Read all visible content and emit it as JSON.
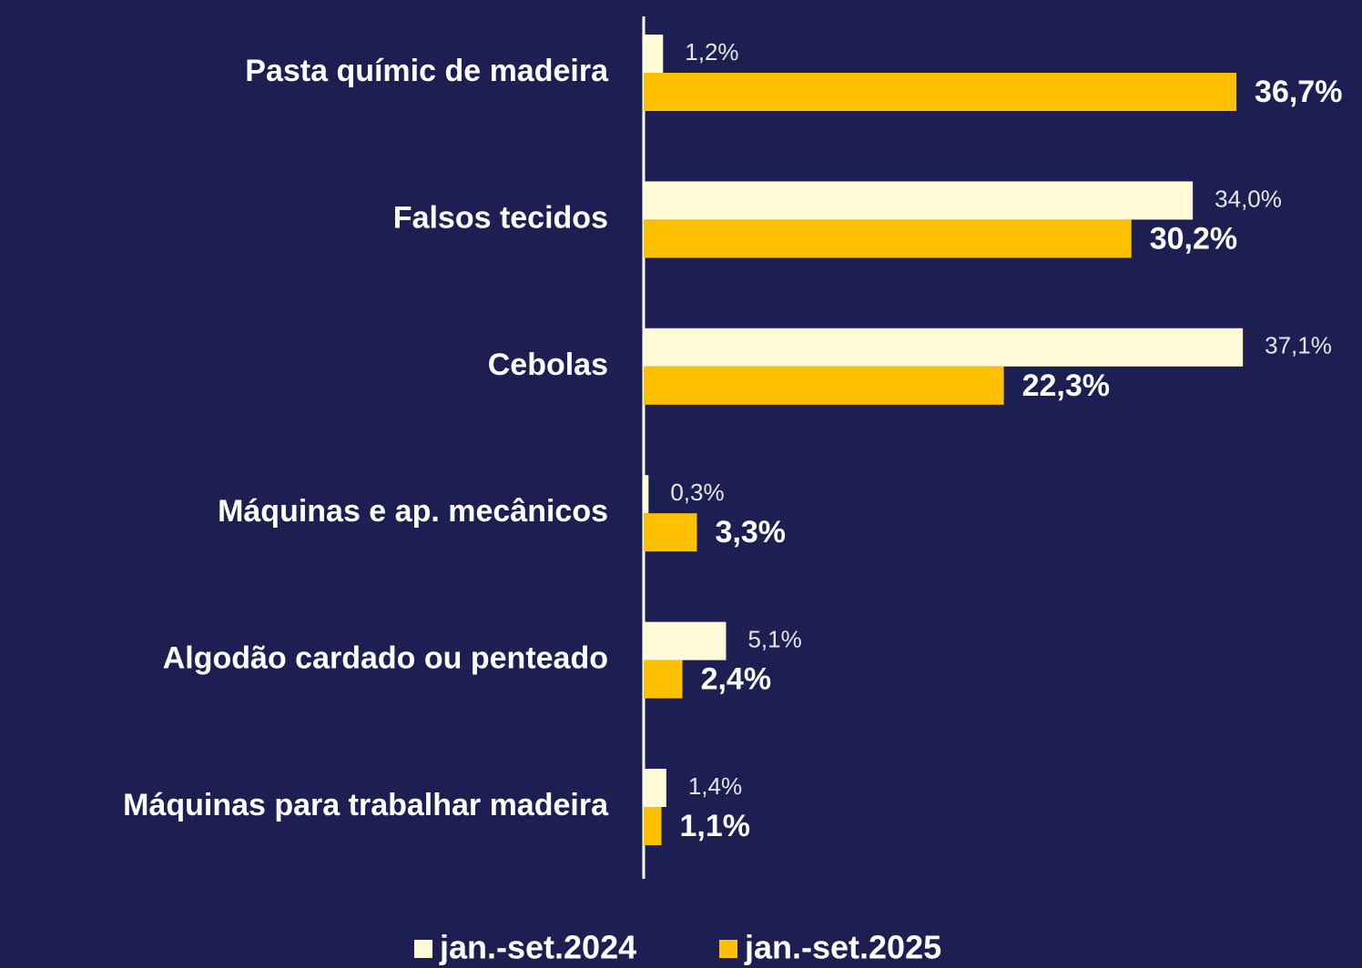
{
  "chart_data": {
    "type": "hbar",
    "categories": [
      "Pasta químic de madeira",
      "Falsos tecidos",
      "Cebolas",
      "Máquinas e ap. mecânicos",
      "Algodão cardado ou penteado",
      "Máquinas para trabalhar madeira"
    ],
    "series": [
      {
        "name": "jan.-set.2024",
        "color": "#fffbd6",
        "values": [
          1.2,
          34.0,
          37.1,
          0.3,
          5.1,
          1.4
        ],
        "value_labels": [
          "1,2%",
          "34,0%",
          "37,1%",
          "0,3%",
          "5,1%",
          "1,4%"
        ]
      },
      {
        "name": "jan.-set.2025",
        "color": "#ffc000",
        "values": [
          36.7,
          30.2,
          22.3,
          3.3,
          2.4,
          1.1
        ],
        "value_labels": [
          "36,7%",
          "30,2%",
          "22,3%",
          "3,3%",
          "2,4%",
          "1,1%"
        ]
      }
    ],
    "xlim": [
      0,
      44
    ]
  }
}
